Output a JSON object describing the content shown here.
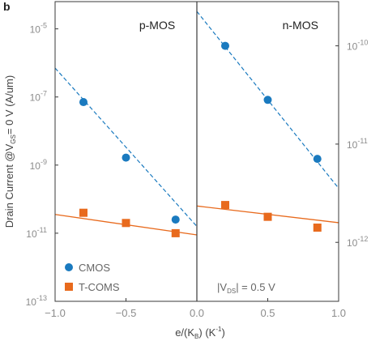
{
  "panel_label": "b",
  "chart_data": {
    "type": "scatter",
    "y_scale": "log",
    "x": {
      "label": "e/(K_B) (K⁻¹)",
      "range": [
        -1.0,
        1.0
      ],
      "ticks": [
        "−1.0",
        "−0.5",
        "0.0",
        "0.5",
        "1.0"
      ]
    },
    "y_left": {
      "label": "Drain Current @V_GS = 0 V (A/um)",
      "range_exp": [
        -13,
        -4.2
      ],
      "ticks": [
        {
          "exp": -5,
          "mantissa": "10",
          "sup": "-5"
        },
        {
          "exp": -7,
          "mantissa": "10",
          "sup": "-7"
        },
        {
          "exp": -9,
          "mantissa": "10",
          "sup": "-9"
        },
        {
          "exp": -11,
          "mantissa": "10",
          "sup": "-11"
        },
        {
          "exp": -13,
          "mantissa": "10",
          "sup": "-13"
        }
      ]
    },
    "y_right": {
      "range_exp": [
        -12.6,
        -9.55
      ],
      "ticks": [
        {
          "exp": -10,
          "mantissa": "10",
          "sup": "-10"
        },
        {
          "exp": -11,
          "mantissa": "10",
          "sup": "-11"
        },
        {
          "exp": -12,
          "mantissa": "10",
          "sup": "-12"
        }
      ]
    },
    "panels": [
      {
        "title": "p-MOS",
        "x_range": [
          -1.0,
          0.0
        ],
        "y_axis": "left",
        "series": [
          {
            "name": "CMOS",
            "marker": "circle",
            "color": "#1a7abf",
            "x": [
              -0.8,
              -0.5,
              -0.15
            ],
            "y_exp": [
              -7.15,
              -8.78,
              -10.6
            ],
            "fit": {
              "x": [
                -1.0,
                0.0
              ],
              "y_exp": [
                -6.15,
                -10.8
              ]
            }
          },
          {
            "name": "T-COMS",
            "marker": "square",
            "color": "#e86a1d",
            "x": [
              -0.8,
              -0.5,
              -0.15
            ],
            "y_exp": [
              -10.4,
              -10.7,
              -11.0
            ],
            "fit": {
              "x": [
                -1.0,
                0.0
              ],
              "y_exp": [
                -10.45,
                -11.05
              ]
            }
          }
        ]
      },
      {
        "title": "n-MOS",
        "x_range": [
          0.0,
          1.0
        ],
        "y_axis": "right",
        "series": [
          {
            "name": "CMOS",
            "marker": "circle",
            "color": "#1a7abf",
            "x": [
              0.2,
              0.5,
              0.85
            ],
            "y_exp": [
              -10.0,
              -10.55,
              -11.15
            ],
            "fit": {
              "x": [
                0.0,
                1.0
              ],
              "y_exp": [
                -9.65,
                -11.45
              ]
            }
          },
          {
            "name": "T-COMS",
            "marker": "square",
            "color": "#e86a1d",
            "x": [
              0.2,
              0.5,
              0.85
            ],
            "y_exp": [
              -11.62,
              -11.74,
              -11.85
            ],
            "fit": {
              "x": [
                0.0,
                1.0
              ],
              "y_exp": [
                -11.63,
                -11.8
              ]
            }
          }
        ]
      }
    ],
    "legend": {
      "position": "bottom-left",
      "items": [
        {
          "label": "CMOS",
          "marker": "circle",
          "color": "#1a7abf"
        },
        {
          "label": "T-COMS",
          "marker": "square",
          "color": "#e86a1d"
        }
      ]
    },
    "annotation": "|V_DS| = 0.5 V"
  }
}
